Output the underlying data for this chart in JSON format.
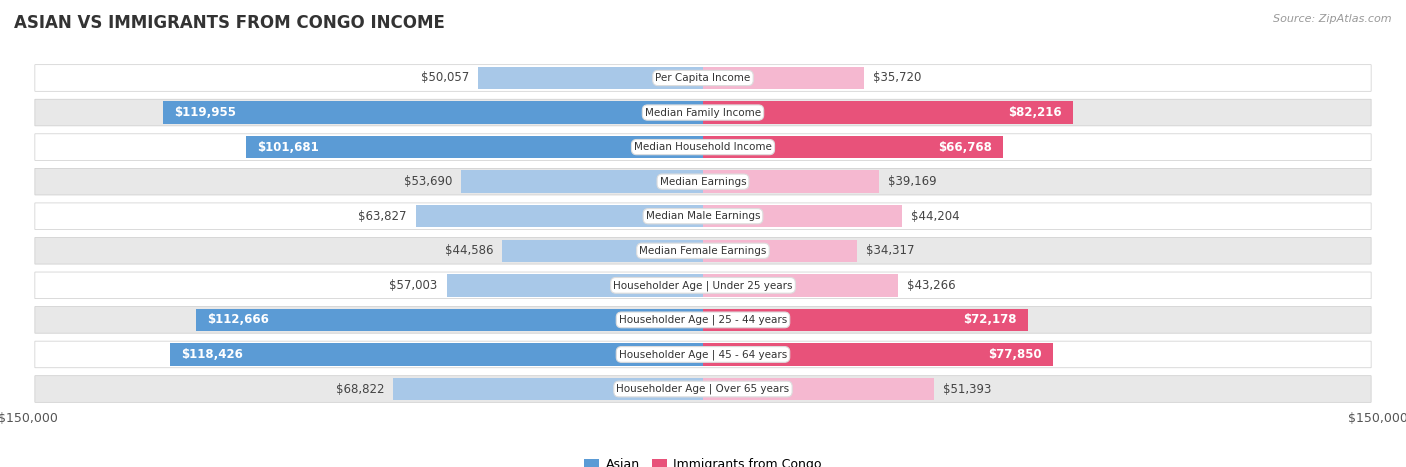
{
  "title": "Asian vs Immigrants from Congo Income",
  "source": "Source: ZipAtlas.com",
  "max_val": 150000,
  "categories": [
    "Per Capita Income",
    "Median Family Income",
    "Median Household Income",
    "Median Earnings",
    "Median Male Earnings",
    "Median Female Earnings",
    "Householder Age | Under 25 years",
    "Householder Age | 25 - 44 years",
    "Householder Age | 45 - 64 years",
    "Householder Age | Over 65 years"
  ],
  "asian_values": [
    50057,
    119955,
    101681,
    53690,
    63827,
    44586,
    57003,
    112666,
    118426,
    68822
  ],
  "congo_values": [
    35720,
    82216,
    66768,
    39169,
    44204,
    34317,
    43266,
    72178,
    77850,
    51393
  ],
  "asian_color_light": "#a8c8e8",
  "asian_color_dark": "#5b9bd5",
  "congo_color_light": "#f5b8d0",
  "congo_color_dark": "#e8527a",
  "bg_color": "#f0f0f0",
  "row_bg_even": "#ffffff",
  "row_bg_odd": "#e8e8e8",
  "label_fontsize": 8.5,
  "title_fontsize": 12,
  "source_fontsize": 8,
  "cat_fontsize": 7.5,
  "legend_asian_color": "#5b9bd5",
  "legend_congo_color": "#e8527a",
  "asian_threshold": 80000,
  "congo_threshold": 60000,
  "title_color": "#333333",
  "source_color": "#999999",
  "label_dark_color": "#444444",
  "label_white_color": "#ffffff"
}
